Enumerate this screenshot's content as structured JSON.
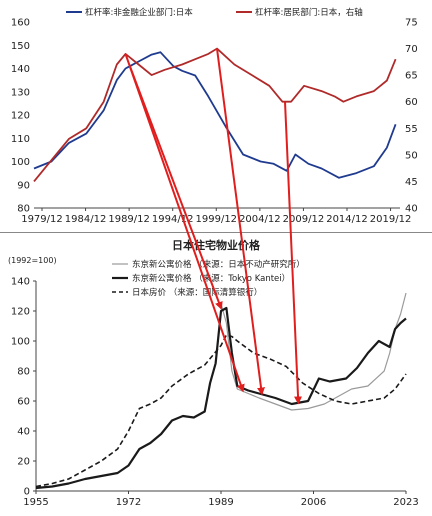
{
  "chart_data": [
    {
      "type": "line",
      "legend": [
        "杠杆率:非金融企业部门:日本",
        "杠杆率:居民部门:日本，右轴"
      ],
      "series": [
        {
          "name": "杠杆率:非金融企业部门:日本",
          "color": "#1f3b8f",
          "axis": "left",
          "x": [
            1979,
            1981,
            1983,
            1985,
            1987,
            1988.5,
            1989.5,
            1991,
            1992.5,
            1993.5,
            1995,
            1996,
            1997.5,
            1999,
            2001,
            2003,
            2005,
            2006.5,
            2008,
            2009,
            2010.5,
            2012,
            2014,
            2016,
            2018,
            2019.5,
            2020.5
          ],
          "values": [
            97,
            100,
            108,
            112,
            122,
            135,
            140,
            143,
            146,
            147,
            141,
            139,
            137,
            128,
            115,
            103,
            100,
            99,
            96,
            103,
            99,
            97,
            93,
            95,
            98,
            106,
            116
          ]
        },
        {
          "name": "杠杆率:居民部门:日本，右轴",
          "color": "#b02a2a",
          "axis": "right",
          "x": [
            1979,
            1981,
            1983,
            1985,
            1987,
            1988.5,
            1989.5,
            1991,
            1992.5,
            1994,
            1996,
            1997.5,
            1999,
            2000,
            2002,
            2004,
            2006,
            2007.5,
            2008.5,
            2010,
            2012,
            2013.5,
            2014.5,
            2016,
            2018,
            2019.5,
            2020.5
          ],
          "values": [
            45,
            49,
            53,
            55,
            60,
            67,
            69,
            67,
            65,
            66,
            67,
            68,
            69,
            70,
            67,
            65,
            63,
            60,
            60,
            63,
            62,
            61,
            60,
            61,
            62,
            64,
            68
          ]
        }
      ],
      "xticks": [
        "1979/12",
        "1984/12",
        "1989/12",
        "1994/12",
        "1999/12",
        "2004/12",
        "2009/12",
        "2014/12",
        "2019/12"
      ],
      "ylim_left": [
        80,
        160
      ],
      "ylim_right": [
        40,
        75
      ],
      "yticks_left": [
        80,
        90,
        100,
        110,
        120,
        130,
        140,
        150,
        160
      ],
      "yticks_right": [
        40,
        45,
        50,
        55,
        60,
        65,
        70,
        75
      ]
    },
    {
      "type": "line",
      "title": "日本住宅物业价格",
      "subtitle": "(1992=100)",
      "legend": [
        "东京新公寓价格 （来源：日本不动产研究所）",
        "东京新公寓价格 （来源：Tokyo Kantei）",
        "日本房价 （来源：国际清算银行）"
      ],
      "series": [
        {
          "name": "东京新公寓价格 （来源：日本不动产研究所）",
          "color": "#9a9a9a",
          "style": "thin",
          "x": [
            1989,
            1990,
            1991,
            1992,
            1994,
            1996,
            1999,
            2002,
            2005,
            2008,
            2010,
            2013,
            2016,
            2019,
            2020,
            2021,
            2022,
            2023
          ],
          "values": [
            125,
            112,
            80,
            68,
            65,
            62,
            58,
            54,
            55,
            58,
            62,
            68,
            70,
            80,
            92,
            108,
            118,
            132
          ]
        },
        {
          "name": "东京新公寓价格 （来源：Tokyo Kantei）",
          "color": "#1a1a1a",
          "style": "thick",
          "x": [
            1955,
            1958,
            1961,
            1964,
            1967,
            1970,
            1972,
            1974,
            1976,
            1978,
            1980,
            1982,
            1984,
            1986,
            1987,
            1988,
            1989,
            1990,
            1991,
            1992,
            1994,
            1996,
            1999,
            2002,
            2005,
            2007,
            2009,
            2012,
            2014,
            2016,
            2018,
            2020,
            2021,
            2022,
            2023
          ],
          "values": [
            2,
            3,
            5,
            8,
            10,
            12,
            17,
            28,
            32,
            38,
            47,
            50,
            49,
            53,
            72,
            85,
            120,
            122,
            92,
            70,
            67,
            65,
            62,
            58,
            60,
            75,
            73,
            75,
            82,
            92,
            100,
            96,
            108,
            112,
            115
          ]
        },
        {
          "name": "日本房价 （来源：国际清算银行）",
          "color": "#1a1a1a",
          "style": "dashed",
          "x": [
            1955,
            1958,
            1961,
            1964,
            1967,
            1970,
            1972,
            1974,
            1976,
            1978,
            1980,
            1983,
            1986,
            1989,
            1990,
            1991,
            1992,
            1995,
            1998,
            2001,
            2004,
            2007,
            2010,
            2013,
            2016,
            2019,
            2021,
            2023
          ],
          "values": [
            3,
            5,
            8,
            14,
            20,
            28,
            40,
            55,
            58,
            62,
            70,
            78,
            84,
            97,
            104,
            103,
            100,
            92,
            88,
            83,
            72,
            65,
            60,
            58,
            60,
            62,
            68,
            78
          ]
        }
      ],
      "xticks": [
        1955,
        1972,
        1989,
        2006,
        2023
      ],
      "xlim": [
        1955,
        2023
      ],
      "ylim": [
        0,
        140
      ],
      "yticks": [
        0,
        20,
        40,
        60,
        80,
        100,
        120,
        140
      ]
    }
  ],
  "annotations": {
    "arrow_color": "#e01e1e"
  }
}
